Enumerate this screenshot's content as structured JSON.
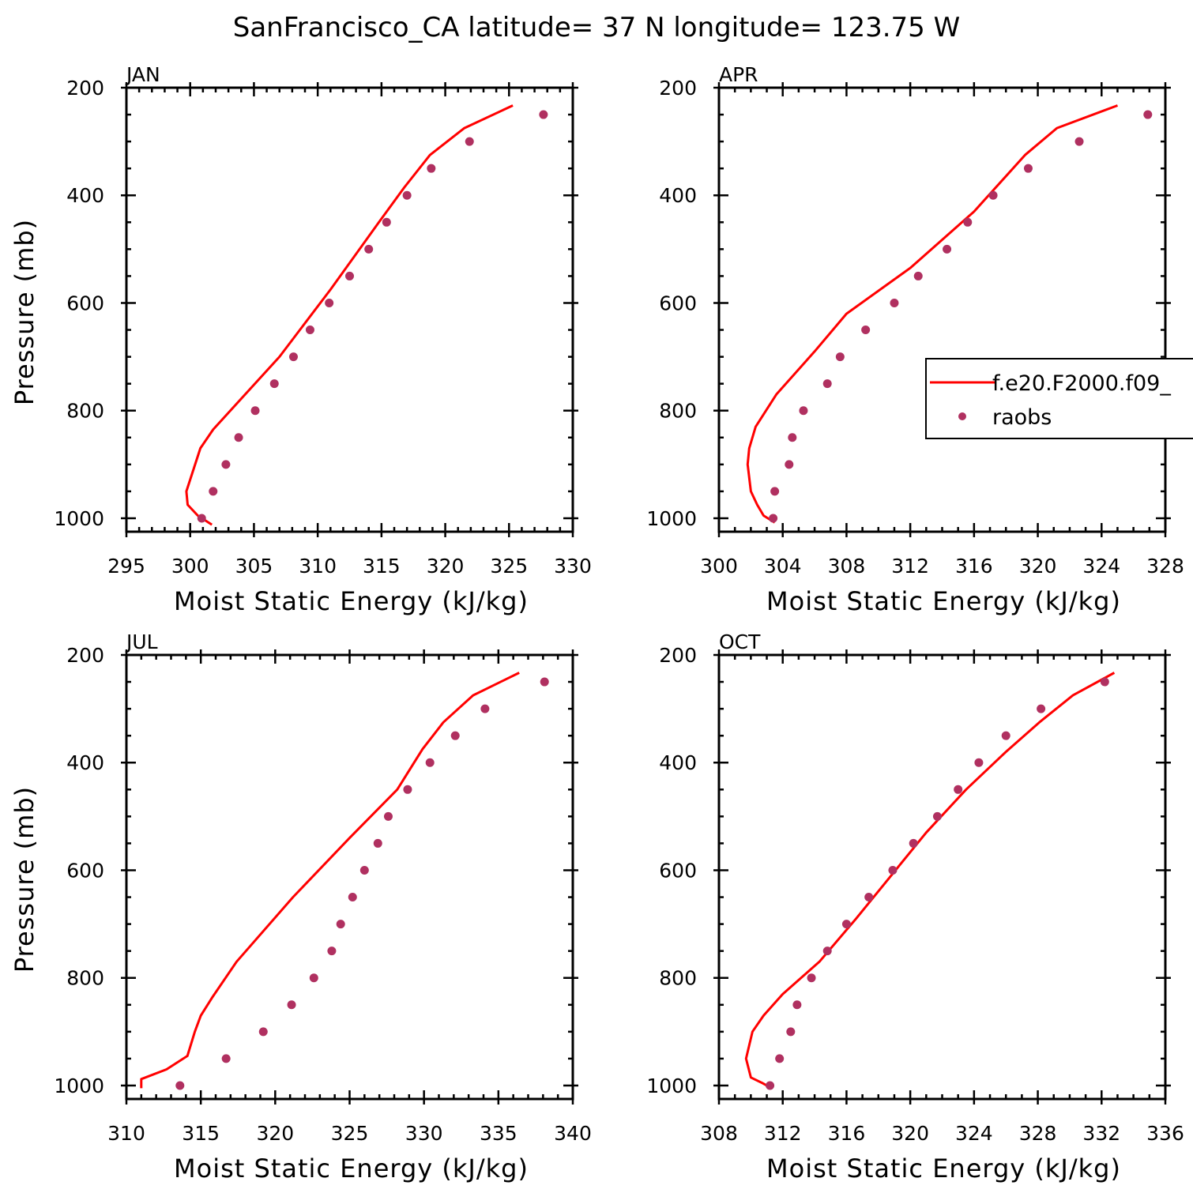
{
  "title": "SanFrancisco_CA  latitude= 37 N longitude= 123.75 W",
  "colors": {
    "model": "#ff0000",
    "obs": "#b03060",
    "axes": "#000000"
  },
  "legend": {
    "entries": [
      {
        "label": "f.e20.F2000.f09_",
        "kind": "line",
        "icon": "red-line-icon"
      },
      {
        "label": "raobs",
        "kind": "marker",
        "icon": "dot-marker-icon"
      }
    ]
  },
  "chart_data": [
    {
      "type": "line",
      "panel": "JAN",
      "xlabel": "Moist Static Energy (kJ/kg)",
      "ylabel": "Pressure (mb)",
      "xlim": [
        295,
        330
      ],
      "ylim": [
        1025,
        200
      ],
      "xticks": [
        295,
        300,
        305,
        310,
        315,
        320,
        325,
        330
      ],
      "xminor": 1,
      "yticks": [
        200,
        400,
        600,
        800,
        1000
      ],
      "yminor": 50,
      "series": [
        {
          "name": "f.e20.F2000.f09_",
          "style": "line",
          "points": [
            [
              325.3,
              233
            ],
            [
              321.5,
              275
            ],
            [
              318.8,
              325
            ],
            [
              316.8,
              385
            ],
            [
              314.8,
              450
            ],
            [
              311.0,
              575
            ],
            [
              307.0,
              700
            ],
            [
              301.8,
              835
            ],
            [
              300.8,
              870
            ],
            [
              299.7,
              950
            ],
            [
              299.8,
              975
            ],
            [
              300.6,
              995
            ],
            [
              301.7,
              1012
            ]
          ]
        },
        {
          "name": "raobs",
          "style": "marker",
          "points": [
            [
              327.7,
              250
            ],
            [
              321.9,
              300
            ],
            [
              318.9,
              350
            ],
            [
              317.0,
              400
            ],
            [
              315.4,
              450
            ],
            [
              314.0,
              500
            ],
            [
              312.5,
              550
            ],
            [
              310.9,
              600
            ],
            [
              309.4,
              650
            ],
            [
              308.1,
              700
            ],
            [
              306.6,
              750
            ],
            [
              305.1,
              800
            ],
            [
              303.8,
              850
            ],
            [
              302.8,
              900
            ],
            [
              301.8,
              950
            ],
            [
              300.9,
              1000
            ]
          ]
        }
      ]
    },
    {
      "type": "line",
      "panel": "APR",
      "xlabel": "Moist Static Energy (kJ/kg)",
      "ylabel": "",
      "xlim": [
        300,
        328
      ],
      "ylim": [
        1025,
        200
      ],
      "xticks": [
        300,
        304,
        308,
        312,
        316,
        320,
        324,
        328
      ],
      "xminor": 1,
      "yticks": [
        200,
        400,
        600,
        800,
        1000
      ],
      "yminor": 50,
      "series": [
        {
          "name": "f.e20.F2000.f09_",
          "style": "line",
          "points": [
            [
              325.0,
              233
            ],
            [
              321.2,
              275
            ],
            [
              319.2,
              325
            ],
            [
              316.0,
              430
            ],
            [
              312.0,
              535
            ],
            [
              308.0,
              620
            ],
            [
              306.0,
              690
            ],
            [
              303.6,
              770
            ],
            [
              302.3,
              830
            ],
            [
              301.9,
              870
            ],
            [
              301.8,
              900
            ],
            [
              302.0,
              950
            ],
            [
              302.4,
              975
            ],
            [
              302.8,
              995
            ],
            [
              303.5,
              1008
            ]
          ]
        },
        {
          "name": "raobs",
          "style": "marker",
          "points": [
            [
              326.9,
              250
            ],
            [
              322.6,
              300
            ],
            [
              319.4,
              350
            ],
            [
              317.2,
              400
            ],
            [
              315.6,
              450
            ],
            [
              314.3,
              500
            ],
            [
              312.5,
              550
            ],
            [
              311.0,
              600
            ],
            [
              309.2,
              650
            ],
            [
              307.6,
              700
            ],
            [
              306.8,
              750
            ],
            [
              305.3,
              800
            ],
            [
              304.6,
              850
            ],
            [
              304.4,
              900
            ],
            [
              303.5,
              950
            ],
            [
              303.4,
              1000
            ]
          ]
        }
      ]
    },
    {
      "type": "line",
      "panel": "JUL",
      "xlabel": "Moist Static Energy (kJ/kg)",
      "ylabel": "Pressure (mb)",
      "xlim": [
        310,
        340
      ],
      "ylim": [
        1025,
        200
      ],
      "xticks": [
        310,
        315,
        320,
        325,
        330,
        335,
        340
      ],
      "xminor": 1,
      "yticks": [
        200,
        400,
        600,
        800,
        1000
      ],
      "yminor": 50,
      "series": [
        {
          "name": "f.e20.F2000.f09_",
          "style": "line",
          "points": [
            [
              336.4,
              233
            ],
            [
              333.3,
              275
            ],
            [
              331.3,
              325
            ],
            [
              329.9,
              375
            ],
            [
              328.2,
              450
            ],
            [
              325.0,
              540
            ],
            [
              321.2,
              650
            ],
            [
              317.4,
              770
            ],
            [
              315.8,
              835
            ],
            [
              315.0,
              870
            ],
            [
              314.6,
              900
            ],
            [
              314.1,
              945
            ],
            [
              312.7,
              970
            ],
            [
              311.0,
              988
            ],
            [
              311.0,
              1005
            ]
          ]
        },
        {
          "name": "raobs",
          "style": "marker",
          "points": [
            [
              338.1,
              250
            ],
            [
              334.1,
              300
            ],
            [
              332.1,
              350
            ],
            [
              330.4,
              400
            ],
            [
              328.9,
              450
            ],
            [
              327.6,
              500
            ],
            [
              326.9,
              550
            ],
            [
              326.0,
              600
            ],
            [
              325.2,
              650
            ],
            [
              324.4,
              700
            ],
            [
              323.8,
              750
            ],
            [
              322.6,
              800
            ],
            [
              321.1,
              850
            ],
            [
              319.2,
              900
            ],
            [
              316.7,
              950
            ],
            [
              313.6,
              1000
            ]
          ]
        }
      ]
    },
    {
      "type": "line",
      "panel": "OCT",
      "xlabel": "Moist Static Energy (kJ/kg)",
      "ylabel": "",
      "xlim": [
        308,
        336
      ],
      "ylim": [
        1025,
        200
      ],
      "xticks": [
        308,
        312,
        316,
        320,
        324,
        328,
        332,
        336
      ],
      "xminor": 1,
      "yticks": [
        200,
        400,
        600,
        800,
        1000
      ],
      "yminor": 50,
      "series": [
        {
          "name": "f.e20.F2000.f09_",
          "style": "line",
          "points": [
            [
              332.8,
              233
            ],
            [
              330.2,
              275
            ],
            [
              328.1,
              325
            ],
            [
              326.0,
              380
            ],
            [
              323.5,
              450
            ],
            [
              321.0,
              530
            ],
            [
              318.8,
              610
            ],
            [
              316.6,
              690
            ],
            [
              314.3,
              770
            ],
            [
              312.0,
              830
            ],
            [
              310.8,
              870
            ],
            [
              310.1,
              900
            ],
            [
              309.7,
              950
            ],
            [
              310.0,
              985
            ],
            [
              310.7,
              995
            ],
            [
              311.3,
              1005
            ]
          ]
        },
        {
          "name": "raobs",
          "style": "marker",
          "points": [
            [
              332.2,
              250
            ],
            [
              328.2,
              300
            ],
            [
              326.0,
              350
            ],
            [
              324.3,
              400
            ],
            [
              323.0,
              450
            ],
            [
              321.7,
              500
            ],
            [
              320.2,
              550
            ],
            [
              318.9,
              600
            ],
            [
              317.4,
              650
            ],
            [
              316.0,
              700
            ],
            [
              314.8,
              750
            ],
            [
              313.8,
              800
            ],
            [
              312.9,
              850
            ],
            [
              312.5,
              900
            ],
            [
              311.8,
              950
            ],
            [
              311.2,
              1000
            ]
          ]
        }
      ]
    }
  ]
}
